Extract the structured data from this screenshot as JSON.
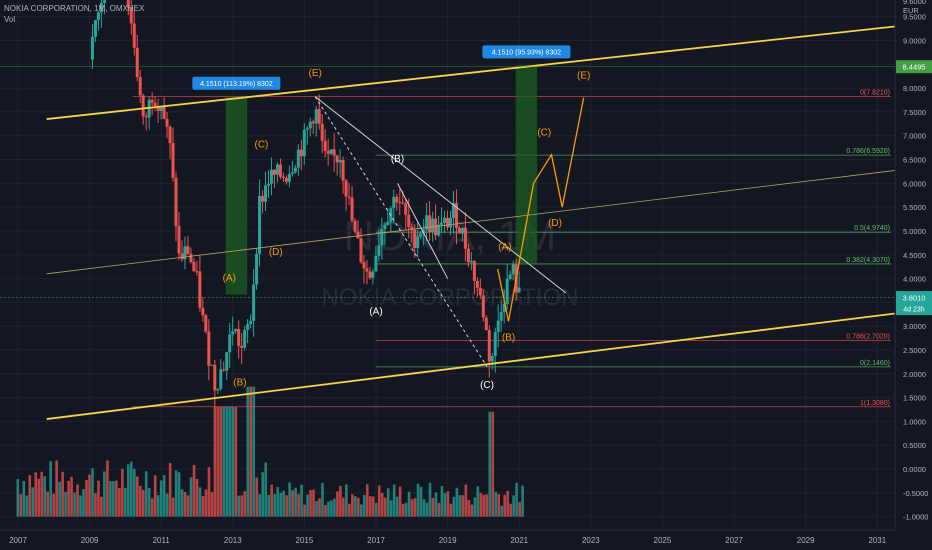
{
  "header": {
    "title": "NOKIA CORPORATION, 1M, OMXHEX",
    "volume_label": "Vol"
  },
  "watermark": {
    "ticker": "NOKIA, 1M",
    "name": "NOKIA CORPORATION"
  },
  "price_axis": {
    "currency": "EUR"
  },
  "colors": {
    "bg": "#131722",
    "up": "#26a69a",
    "down": "#ef5350",
    "trend": "#f5d547",
    "fib": "#66bb6a",
    "wave": "#ff9800",
    "box": "#1e88e5"
  },
  "chart_data": [
    {
      "type": "candlestick",
      "title": "NOKIA CORPORATION, 1M, OMXHEX",
      "x_ticks": [
        "2007",
        "2009",
        "2011",
        "2013",
        "2015",
        "2017",
        "2019",
        "2021",
        "2023",
        "2025",
        "2027",
        "2029",
        "2031"
      ],
      "y_ticks": [
        9.5,
        9.0,
        8.5,
        8.0,
        7.5,
        7.0,
        6.5,
        6.0,
        5.5,
        5.0,
        4.5,
        4.0,
        3.5,
        3.0,
        2.5,
        2.0,
        1.5,
        1.0,
        0.5,
        0.0,
        -0.5,
        -1.0
      ],
      "y_tick_labels": [
        "9.5000",
        "9.0000",
        "8.5000",
        "8.0000",
        "7.5000",
        "7.0000",
        "6.5000",
        "6.0000",
        "5.5000",
        "5.0000",
        "4.5000",
        "4.0000",
        "3.5000",
        "3.0000",
        "2.5000",
        "2.0000",
        "1.5000",
        "1.0000",
        "0.5000",
        "0.0000",
        "-0.5000",
        "-1.0000"
      ],
      "y_top_label": "9.6000",
      "ylim": [
        -1.28,
        9.85
      ],
      "price_closes": [
        [
          2009.0,
          8.6
        ],
        [
          2009.5,
          10.5
        ],
        [
          2010.0,
          10.2
        ],
        [
          2010.25,
          8.9
        ],
        [
          2010.5,
          7.2
        ],
        [
          2010.75,
          7.9
        ],
        [
          2011.0,
          7.7
        ],
        [
          2011.25,
          6.7
        ],
        [
          2011.5,
          4.4
        ],
        [
          2011.75,
          4.6
        ],
        [
          2012.0,
          3.9
        ],
        [
          2012.25,
          2.7
        ],
        [
          2012.5,
          1.8
        ],
        [
          2012.75,
          2.2
        ],
        [
          2013.0,
          3.0
        ],
        [
          2013.25,
          2.5
        ],
        [
          2013.5,
          3.2
        ],
        [
          2013.75,
          5.6
        ],
        [
          2014.0,
          6.1
        ],
        [
          2014.5,
          6.2
        ],
        [
          2015.0,
          6.9
        ],
        [
          2015.3,
          7.6
        ],
        [
          2015.6,
          6.4
        ],
        [
          2016.0,
          6.6
        ],
        [
          2016.4,
          4.9
        ],
        [
          2016.8,
          4.0
        ],
        [
          2017.2,
          5.2
        ],
        [
          2017.6,
          5.8
        ],
        [
          2018.0,
          4.8
        ],
        [
          2018.4,
          5.2
        ],
        [
          2018.8,
          5.0
        ],
        [
          2019.2,
          5.4
        ],
        [
          2019.6,
          4.5
        ],
        [
          2020.0,
          3.3
        ],
        [
          2020.2,
          2.2
        ],
        [
          2020.5,
          3.5
        ],
        [
          2020.8,
          4.2
        ],
        [
          2021.0,
          3.6
        ]
      ],
      "volume_bars": {
        "count": 170,
        "first_x": 2007.0,
        "last_x": 2021.1
      },
      "trendlines": [
        {
          "from": [
            2007.8,
            7.35
          ],
          "to": [
            2034.0,
            9.5
          ]
        },
        {
          "from": [
            2007.8,
            1.05
          ],
          "to": [
            2034.0,
            3.5
          ]
        },
        {
          "from": [
            2007.8,
            4.1
          ],
          "to": [
            2034.0,
            6.5
          ]
        },
        {
          "from": [
            2015.3,
            7.82
          ],
          "to": [
            2022.3,
            3.7
          ]
        },
        {
          "from": [
            2015.3,
            7.82
          ],
          "to": [
            2020.1,
            2.15
          ]
        },
        {
          "from": [
            2017.6,
            6.0
          ],
          "to": [
            2019.0,
            4.0
          ]
        }
      ],
      "fib_levels": [
        {
          "label": "0(7.8210)",
          "value": 7.821,
          "color": "#ef5350"
        },
        {
          "label": "0.786(6.5920)",
          "value": 6.592,
          "color": "#66bb6a"
        },
        {
          "label": "0.5(4.9740)",
          "value": 4.974,
          "color": "#66bb6a"
        },
        {
          "label": "0.382(4.3070)",
          "value": 4.307,
          "color": "#66bb6a"
        },
        {
          "label": "0.786(2.7020)",
          "value": 2.702,
          "color": "#ef5350"
        },
        {
          "label": "0(2.1460)",
          "value": 2.146,
          "color": "#66bb6a"
        },
        {
          "label": "1(1.3080)",
          "value": 1.308,
          "color": "#ef5350"
        }
      ],
      "measure_boxes": [
        {
          "label": "4.1510 (113.19%) 8302",
          "x_from": 2012.8,
          "x_to": 2013.4,
          "y_from": 3.667,
          "y_to": 7.818
        },
        {
          "label": "4.1510 (95.93%) 8302",
          "x_from": 2020.9,
          "x_to": 2021.5,
          "y_from": 4.327,
          "y_to": 8.478
        }
      ],
      "wave_labels": [
        {
          "text": "(A)",
          "x": 2012.9,
          "y": 3.95,
          "color": "#ff9800"
        },
        {
          "text": "(B)",
          "x": 2013.2,
          "y": 1.75,
          "color": "#ff9800"
        },
        {
          "text": "(C)",
          "x": 2013.8,
          "y": 6.75,
          "color": "#ff9800"
        },
        {
          "text": "(D)",
          "x": 2014.2,
          "y": 4.5,
          "color": "#ff9800"
        },
        {
          "text": "(E)",
          "x": 2015.3,
          "y": 8.25,
          "color": "#ff9800"
        },
        {
          "text": "(A)",
          "x": 2017.0,
          "y": 3.25,
          "color": "#ffffff"
        },
        {
          "text": "(B)",
          "x": 2017.6,
          "y": 6.45,
          "color": "#ffffff"
        },
        {
          "text": "(C)",
          "x": 2020.1,
          "y": 1.7,
          "color": "#ffffff"
        },
        {
          "text": "(A)",
          "x": 2020.6,
          "y": 4.6,
          "color": "#ff9800"
        },
        {
          "text": "(B)",
          "x": 2020.7,
          "y": 2.7,
          "color": "#ff9800"
        },
        {
          "text": "(C)",
          "x": 2021.7,
          "y": 7.0,
          "color": "#ff9800"
        },
        {
          "text": "(D)",
          "x": 2022.0,
          "y": 5.1,
          "color": "#ff9800"
        },
        {
          "text": "(E)",
          "x": 2022.8,
          "y": 8.2,
          "color": "#ff9800"
        }
      ],
      "projection": [
        [
          2020.4,
          4.2
        ],
        [
          2020.7,
          3.1
        ],
        [
          2021.4,
          6.0
        ],
        [
          2021.9,
          6.6
        ],
        [
          2022.2,
          5.5
        ],
        [
          2022.8,
          7.8
        ]
      ],
      "current_price": {
        "value": 3.601,
        "label": "3.6010",
        "timer": "4d 23h"
      },
      "highlight_price": {
        "value": 8.4495,
        "label": "8.4495"
      }
    }
  ]
}
